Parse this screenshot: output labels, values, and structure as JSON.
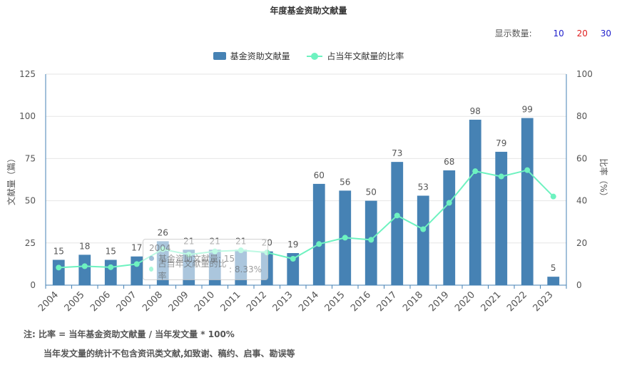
{
  "title": "年度基金资助文献量",
  "show_count": {
    "label": "显示数量:",
    "options": [
      "10",
      "20",
      "30"
    ],
    "option_colors": [
      "#1f1fcc",
      "#e02020",
      "#1f1fcc"
    ]
  },
  "colors": {
    "bar": "#4682b4",
    "line": "#6ef2c0",
    "axis": "#4682b4",
    "grid": "#e6e6e6"
  },
  "chart_data": {
    "type": "bar",
    "title": "年度基金资助文献量",
    "categories": [
      "2004",
      "2005",
      "2006",
      "2007",
      "2008",
      "2009",
      "2010",
      "2011",
      "2012",
      "2013",
      "2014",
      "2015",
      "2016",
      "2017",
      "2018",
      "2019",
      "2020",
      "2021",
      "2022",
      "2023"
    ],
    "series": [
      {
        "name": "基金资助文献量",
        "type": "bar",
        "axis": "left",
        "values": [
          15,
          18,
          15,
          17,
          26,
          21,
          21,
          21,
          20,
          19,
          60,
          56,
          50,
          73,
          53,
          68,
          98,
          79,
          99,
          5
        ]
      },
      {
        "name": "占当年文献量的比率",
        "type": "line",
        "axis": "right",
        "values": [
          8.33,
          9,
          8.5,
          10,
          17,
          14.5,
          16,
          16.5,
          15.5,
          12.5,
          19.5,
          22.5,
          21.5,
          33,
          26.5,
          39,
          54,
          51.5,
          54.5,
          42
        ]
      }
    ],
    "ylabel": "文献量（篇）",
    "y2label": "比率（%）",
    "ylim": [
      0,
      125
    ],
    "y2lim": [
      0,
      100
    ],
    "yticks": [
      "0",
      "25",
      "50",
      "75",
      "100",
      "125"
    ],
    "y2ticks": [
      "0",
      "20",
      "40",
      "60",
      "80",
      "100"
    ],
    "grid": true,
    "legend": "top-center"
  },
  "tooltip": {
    "year": "2004",
    "rows": [
      {
        "label": "基金资助文献量",
        "value": "15"
      },
      {
        "label": "占当年文献量的比率",
        "value": "8.33%"
      }
    ]
  },
  "notes": {
    "line1": "注:  比率 = 当年基金资助文献量 / 当年发文量 * 100%",
    "line2": "当年发文量的统计不包含资讯类文献,如致谢、稿约、启事、勘误等"
  }
}
